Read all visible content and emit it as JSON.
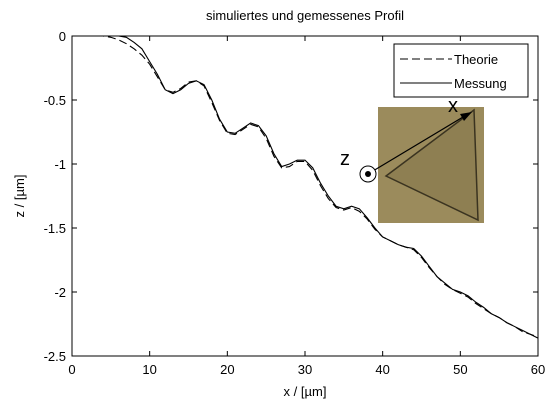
{
  "chart_data": {
    "type": "line",
    "title": "simuliertes und gemessenes Profil",
    "x_label": "x / [µm]",
    "y_label": "z / [µm]",
    "x": [
      0,
      1,
      2,
      3,
      4,
      5,
      6,
      7,
      8,
      9,
      10,
      11,
      12,
      13,
      14,
      15,
      16,
      17,
      18,
      19,
      20,
      21,
      22,
      23,
      24,
      25,
      26,
      27,
      28,
      29,
      30,
      31,
      32,
      33,
      34,
      35,
      36,
      37,
      38,
      39,
      40,
      41,
      42,
      43,
      44,
      45,
      46,
      47,
      48,
      49,
      50,
      51,
      52,
      53,
      54,
      55,
      56,
      57,
      58,
      59,
      60
    ],
    "series": [
      {
        "name": "Theorie",
        "color": "#000000",
        "line_style": "dashed",
        "values": [
          0,
          0,
          0,
          0,
          0,
          -0.01,
          -0.03,
          -0.06,
          -0.1,
          -0.15,
          -0.22,
          -0.32,
          -0.42,
          -0.44,
          -0.41,
          -0.36,
          -0.35,
          -0.39,
          -0.52,
          -0.66,
          -0.76,
          -0.77,
          -0.73,
          -0.69,
          -0.71,
          -0.8,
          -0.94,
          -1.03,
          -1.02,
          -0.98,
          -0.98,
          -1.05,
          -1.17,
          -1.27,
          -1.34,
          -1.36,
          -1.34,
          -1.37,
          -1.43,
          -1.51,
          -1.57,
          -1.6,
          -1.63,
          -1.65,
          -1.67,
          -1.73,
          -1.81,
          -1.88,
          -1.94,
          -1.98,
          -2.01,
          -2.04,
          -2.09,
          -2.13,
          -2.17,
          -2.2,
          -2.24,
          -2.27,
          -2.31,
          -2.33,
          -2.35
        ]
      },
      {
        "name": "Messung",
        "color": "#000000",
        "line_style": "solid",
        "values": [
          0,
          0,
          0,
          0,
          0,
          0,
          0,
          -0.01,
          -0.05,
          -0.1,
          -0.2,
          -0.3,
          -0.42,
          -0.45,
          -0.42,
          -0.37,
          -0.35,
          -0.38,
          -0.5,
          -0.65,
          -0.75,
          -0.76,
          -0.72,
          -0.68,
          -0.7,
          -0.78,
          -0.92,
          -1.02,
          -1.0,
          -0.97,
          -0.97,
          -1.03,
          -1.15,
          -1.25,
          -1.33,
          -1.35,
          -1.33,
          -1.35,
          -1.42,
          -1.5,
          -1.57,
          -1.6,
          -1.63,
          -1.65,
          -1.66,
          -1.72,
          -1.8,
          -1.88,
          -1.93,
          -1.98,
          -2.0,
          -2.03,
          -2.08,
          -2.12,
          -2.17,
          -2.2,
          -2.24,
          -2.27,
          -2.3,
          -2.33,
          -2.36
        ]
      }
    ],
    "xlim": [
      0,
      60
    ],
    "xticks": [
      0,
      10,
      20,
      30,
      40,
      50,
      60
    ],
    "ylim": [
      -2.5,
      0
    ],
    "yticks": [
      0,
      -0.5,
      -1,
      -1.5,
      -2,
      -2.5
    ],
    "grid": false,
    "legend": "upper right",
    "inset_labels": {
      "x": "x",
      "z": "z"
    }
  }
}
